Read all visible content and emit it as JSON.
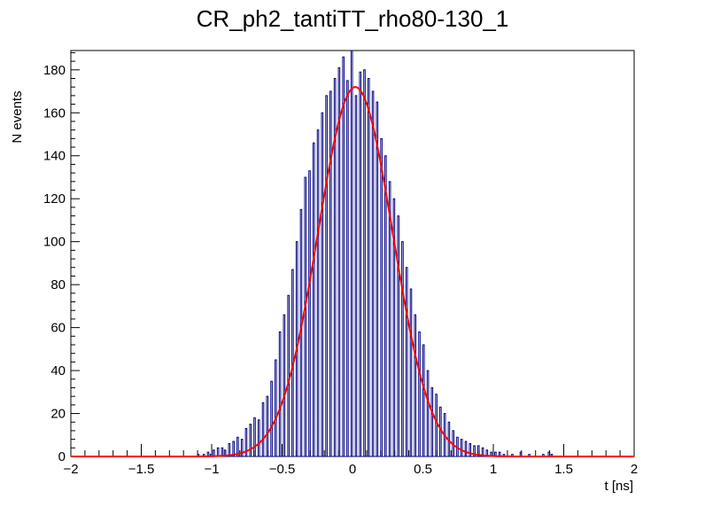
{
  "chart_data": {
    "type": "histogram",
    "title": "CR_ph2_tantiTT_rho80-130_1",
    "xlabel": "t [ns]",
    "ylabel": "N events",
    "xlim": [
      -2,
      2
    ],
    "ylim": [
      0,
      189
    ],
    "x_major_ticks": [
      -2,
      -1.5,
      -1,
      -0.5,
      0,
      0.5,
      1,
      1.5,
      2
    ],
    "x_tick_labels": [
      "−2",
      "−1.5",
      "−1",
      "−0.5",
      "0",
      "0.5",
      "1",
      "1.5",
      "2"
    ],
    "y_major_ticks": [
      0,
      20,
      40,
      60,
      80,
      100,
      120,
      140,
      160,
      180
    ],
    "y_tick_labels": [
      "0",
      "20",
      "40",
      "60",
      "80",
      "100",
      "120",
      "140",
      "160",
      "180"
    ],
    "histogram": {
      "name": "data",
      "color": "#000080",
      "bin_edges_range": [
        -2,
        2
      ],
      "n_bins": 400,
      "bin_centers_nonzero": [
        -1.095,
        -1.055,
        -1.025,
        -1.005,
        -0.985,
        -0.955,
        -0.925,
        -0.905,
        -0.875,
        -0.845,
        -0.815,
        -0.785,
        -0.755,
        -0.725,
        -0.695,
        -0.665,
        -0.635,
        -0.605,
        -0.575,
        -0.545,
        -0.515,
        -0.485,
        -0.455,
        -0.425,
        -0.395,
        -0.365,
        -0.335,
        -0.305,
        -0.275,
        -0.245,
        -0.215,
        -0.185,
        -0.155,
        -0.125,
        -0.095,
        -0.065,
        -0.035,
        -0.005,
        0.025,
        0.055,
        0.085,
        0.115,
        0.145,
        0.175,
        0.205,
        0.235,
        0.265,
        0.295,
        0.325,
        0.355,
        0.385,
        0.415,
        0.445,
        0.475,
        0.505,
        0.535,
        0.565,
        0.595,
        0.625,
        0.655,
        0.685,
        0.715,
        0.745,
        0.775,
        0.805,
        0.835,
        0.865,
        0.895,
        0.925,
        0.955,
        0.985,
        1.015,
        1.045,
        1.075,
        1.135,
        1.195,
        1.255,
        1.355,
        1.395,
        1.415
      ],
      "values": [
        1,
        1,
        2,
        1,
        3,
        4,
        4,
        3,
        6,
        7,
        9,
        8,
        13,
        15,
        18,
        17,
        25,
        28,
        35,
        45,
        58,
        66,
        75,
        87,
        100,
        115,
        130,
        133,
        146,
        152,
        160,
        168,
        170,
        176,
        181,
        186,
        175,
        189,
        168,
        179,
        180,
        176,
        170,
        165,
        148,
        140,
        128,
        120,
        112,
        100,
        88,
        78,
        66,
        58,
        52,
        40,
        32,
        29,
        23,
        20,
        16,
        12,
        9,
        8,
        7,
        6,
        5,
        5,
        4,
        3,
        2,
        2,
        2,
        1,
        1,
        2,
        1,
        1,
        2,
        1
      ]
    },
    "fit": {
      "name": "gaussian fit",
      "type": "gaussian",
      "color": "#ff0000",
      "amplitude": 172,
      "mean": 0.02,
      "sigma": 0.265
    }
  }
}
